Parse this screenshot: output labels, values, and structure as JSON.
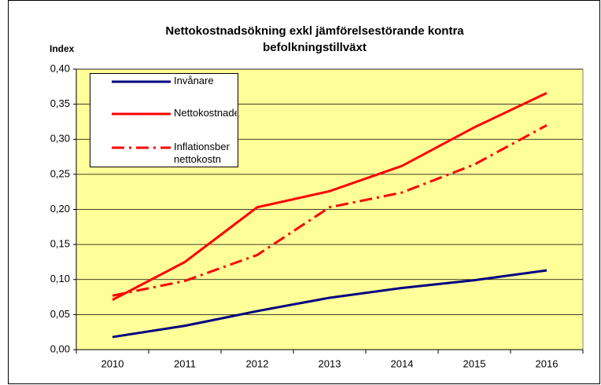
{
  "chart_data": {
    "type": "line",
    "title": [
      "Nettokostnadsökning exkl jämförelsestörande kontra",
      "befolkningstillväxt"
    ],
    "y_label": "Index",
    "categories": [
      "2010",
      "2011",
      "2012",
      "2013",
      "2014",
      "2015",
      "2016"
    ],
    "series": [
      {
        "name": "Invånare",
        "color": "#000080",
        "dash": "solid",
        "values": [
          0.018,
          0.034,
          0.055,
          0.074,
          0.088,
          0.099,
          0.113
        ]
      },
      {
        "name": "Nettokostnader",
        "color": "#ff0000",
        "dash": "solid",
        "values": [
          0.071,
          0.125,
          0.203,
          0.226,
          0.262,
          0.317,
          0.366
        ]
      },
      {
        "name": "Inflationsber nettokostn",
        "color": "#ff0000",
        "dash": "dashdot",
        "values": [
          0.077,
          0.098,
          0.135,
          0.203,
          0.224,
          0.264,
          0.32
        ]
      }
    ],
    "ylim": [
      0,
      0.4
    ],
    "yticks": [
      {
        "value": 0,
        "label": "0,00"
      },
      {
        "value": 0.05,
        "label": "0,05"
      },
      {
        "value": 0.1,
        "label": "0,10"
      },
      {
        "value": 0.15,
        "label": "0,15"
      },
      {
        "value": 0.2,
        "label": "0,20"
      },
      {
        "value": 0.25,
        "label": "0,25"
      },
      {
        "value": 0.3,
        "label": "0,30"
      },
      {
        "value": 0.35,
        "label": "0,35"
      },
      {
        "value": 0.4,
        "label": "0,40"
      }
    ],
    "grid": true,
    "plot_background": "#ffff99"
  }
}
